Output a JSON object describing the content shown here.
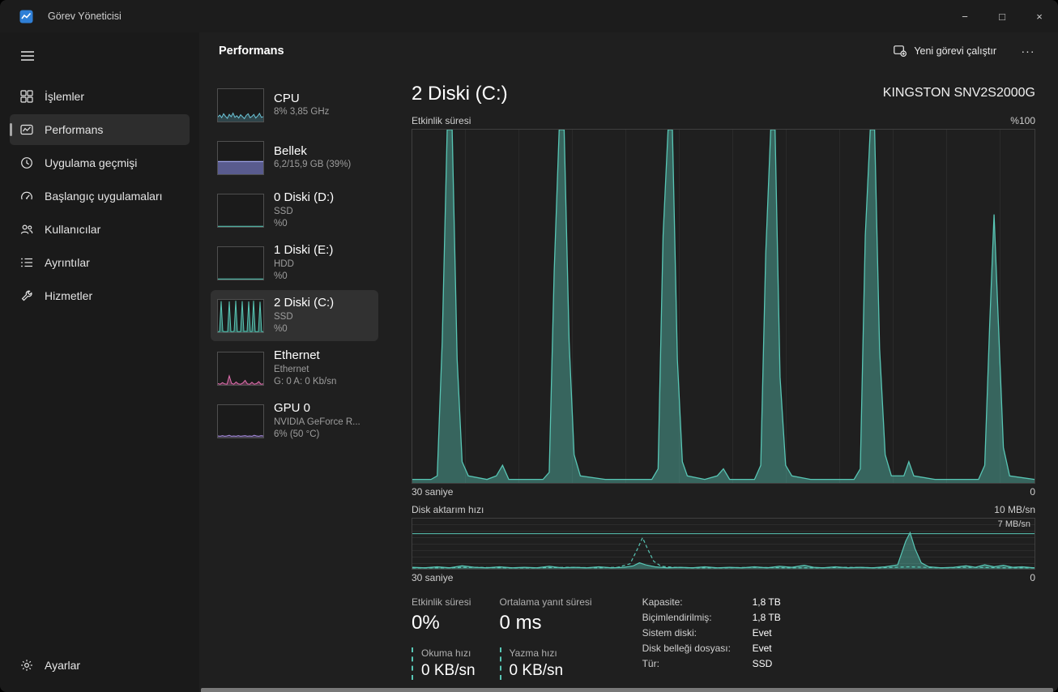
{
  "window": {
    "title": "Görev Yöneticisi"
  },
  "icons": {
    "minimize": "−",
    "maximize": "□",
    "close": "×",
    "more": "···"
  },
  "nav": {
    "items": [
      {
        "label": "İşlemler"
      },
      {
        "label": "Performans",
        "selected": true
      },
      {
        "label": "Uygulama geçmişi"
      },
      {
        "label": "Başlangıç uygulamaları"
      },
      {
        "label": "Kullanıcılar"
      },
      {
        "label": "Ayrıntılar"
      },
      {
        "label": "Hizmetler"
      }
    ],
    "settings_label": "Ayarlar"
  },
  "header": {
    "title": "Performans",
    "run_new_task": "Yeni görevi çalıştır"
  },
  "perf_list": [
    {
      "name": "CPU",
      "line1": "8% 3,85 GHz",
      "line2": ""
    },
    {
      "name": "Bellek",
      "line1": "6,2/15,9 GB (39%)",
      "line2": ""
    },
    {
      "name": "0 Diski (D:)",
      "line1": "SSD",
      "line2": "%0"
    },
    {
      "name": "1 Diski (E:)",
      "line1": "HDD",
      "line2": "%0"
    },
    {
      "name": "2 Diski (C:)",
      "line1": "SSD",
      "line2": "%0",
      "selected": true
    },
    {
      "name": "Ethernet",
      "line1": "Ethernet",
      "line2": "G: 0 A: 0 Kb/sn"
    },
    {
      "name": "GPU 0",
      "line1": "NVIDIA GeForce R...",
      "line2": "6% (50 °C)"
    }
  ],
  "detail": {
    "title": "2 Diski (C:)",
    "subtitle": "KINGSTON SNV2S2000G",
    "chart1": {
      "label": "Etkinlik süresi",
      "max_label": "%100",
      "x_left": "30 saniye",
      "x_right": "0"
    },
    "chart2": {
      "label": "Disk aktarım hızı",
      "max_label": "10 MB/sn",
      "peak_label": "7 MB/sn",
      "x_left": "30 saniye",
      "x_right": "0"
    },
    "stats": {
      "active_time": {
        "label": "Etkinlik süresi",
        "value": "0%"
      },
      "avg_response": {
        "label": "Ortalama yanıt süresi",
        "value": "0 ms"
      },
      "read_speed": {
        "label": "Okuma hızı",
        "value": "0 KB/sn"
      },
      "write_speed": {
        "label": "Yazma hızı",
        "value": "0 KB/sn"
      },
      "props": [
        {
          "label": "Kapasite:",
          "value": "1,8 TB"
        },
        {
          "label": "Biçimlendirilmiş:",
          "value": "1,8 TB"
        },
        {
          "label": "Sistem diski:",
          "value": "Evet"
        },
        {
          "label": "Disk belleği dosyası:",
          "value": "Evet"
        },
        {
          "label": "Tür:",
          "value": "SSD"
        }
      ]
    }
  },
  "colors": {
    "teal": "#58c6b5",
    "teal_fill": "rgba(88,198,181,0.42)",
    "cpu": "#6cc5d8",
    "cpu_fill": "rgba(108,197,216,0.25)",
    "purple": "#9da1e8",
    "purple_fill": "rgba(131,135,220,0.60)",
    "pink": "#e36fb0",
    "pink_fill": "rgba(227,111,176,0.30)",
    "gpu": "#a98ee0",
    "gpu_fill": "rgba(169,142,224,0.30)"
  },
  "chart_data": {
    "activity": {
      "type": "area",
      "title": "Etkinlik süresi",
      "ylim": [
        0,
        100
      ],
      "x_window": "30 saniye",
      "points": [
        [
          0,
          1
        ],
        [
          3,
          1
        ],
        [
          4,
          2
        ],
        [
          4.8,
          40
        ],
        [
          5.6,
          100
        ],
        [
          6.4,
          100
        ],
        [
          7.2,
          35
        ],
        [
          8,
          6
        ],
        [
          9,
          2
        ],
        [
          12,
          1
        ],
        [
          13.5,
          2
        ],
        [
          14.5,
          5
        ],
        [
          15.5,
          1
        ],
        [
          21,
          1
        ],
        [
          22,
          3
        ],
        [
          22.8,
          60
        ],
        [
          23.6,
          100
        ],
        [
          24.4,
          100
        ],
        [
          25.2,
          40
        ],
        [
          26,
          8
        ],
        [
          27,
          2
        ],
        [
          31,
          1
        ],
        [
          35,
          1
        ],
        [
          38.5,
          1
        ],
        [
          39.5,
          4
        ],
        [
          40.3,
          70
        ],
        [
          41.1,
          100
        ],
        [
          41.8,
          100
        ],
        [
          42.6,
          35
        ],
        [
          43.4,
          6
        ],
        [
          44.2,
          2
        ],
        [
          47,
          1
        ],
        [
          49,
          2
        ],
        [
          50,
          4
        ],
        [
          51,
          1
        ],
        [
          55,
          1
        ],
        [
          56,
          5
        ],
        [
          56.8,
          65
        ],
        [
          57.6,
          100
        ],
        [
          58.3,
          100
        ],
        [
          59.1,
          30
        ],
        [
          60,
          5
        ],
        [
          61,
          2
        ],
        [
          64,
          1
        ],
        [
          68,
          1
        ],
        [
          71,
          1
        ],
        [
          72,
          4
        ],
        [
          72.8,
          70
        ],
        [
          73.6,
          100
        ],
        [
          74.3,
          100
        ],
        [
          75.1,
          38
        ],
        [
          76,
          8
        ],
        [
          77,
          2
        ],
        [
          79,
          2
        ],
        [
          79.8,
          6
        ],
        [
          80.6,
          2
        ],
        [
          84,
          1
        ],
        [
          88,
          1
        ],
        [
          91,
          1
        ],
        [
          92,
          5
        ],
        [
          92.8,
          45
        ],
        [
          93.5,
          76
        ],
        [
          94.2,
          45
        ],
        [
          95,
          10
        ],
        [
          96,
          2
        ],
        [
          100,
          1
        ]
      ]
    },
    "transfer": {
      "type": "area",
      "title": "Disk aktarım hızı",
      "ylim_label": "10 MB/sn",
      "scale_line_label": "7 MB/sn",
      "scale_line_pct": 70,
      "read_points": [
        [
          0,
          3
        ],
        [
          2,
          2
        ],
        [
          4,
          4
        ],
        [
          6,
          2
        ],
        [
          8,
          6
        ],
        [
          10,
          3
        ],
        [
          12,
          2
        ],
        [
          14,
          4
        ],
        [
          16,
          2
        ],
        [
          18,
          3
        ],
        [
          20,
          2
        ],
        [
          22,
          5
        ],
        [
          24,
          2
        ],
        [
          26,
          3
        ],
        [
          28,
          2
        ],
        [
          30,
          4
        ],
        [
          32,
          2
        ],
        [
          34,
          3
        ],
        [
          35.5,
          6
        ],
        [
          36.5,
          12
        ],
        [
          37.5,
          8
        ],
        [
          39,
          4
        ],
        [
          41,
          2
        ],
        [
          43,
          3
        ],
        [
          45,
          2
        ],
        [
          47,
          4
        ],
        [
          49,
          2
        ],
        [
          51,
          3
        ],
        [
          53,
          2
        ],
        [
          55,
          4
        ],
        [
          57,
          2
        ],
        [
          59,
          5
        ],
        [
          61,
          3
        ],
        [
          63,
          7
        ],
        [
          64.5,
          3
        ],
        [
          66,
          2
        ],
        [
          68,
          4
        ],
        [
          70,
          2
        ],
        [
          72,
          3
        ],
        [
          74,
          2
        ],
        [
          76,
          4
        ],
        [
          78,
          8
        ],
        [
          79.3,
          55
        ],
        [
          80,
          72
        ],
        [
          80.8,
          40
        ],
        [
          81.8,
          12
        ],
        [
          83,
          4
        ],
        [
          85,
          2
        ],
        [
          87,
          3
        ],
        [
          89,
          6
        ],
        [
          90.5,
          3
        ],
        [
          92,
          8
        ],
        [
          93.5,
          4
        ],
        [
          95,
          7
        ],
        [
          96.5,
          3
        ],
        [
          98,
          4
        ],
        [
          100,
          2
        ]
      ],
      "write_points": [
        [
          0,
          2
        ],
        [
          5,
          2
        ],
        [
          10,
          3
        ],
        [
          15,
          2
        ],
        [
          20,
          2
        ],
        [
          25,
          3
        ],
        [
          30,
          2
        ],
        [
          33,
          3
        ],
        [
          35,
          10
        ],
        [
          36.2,
          40
        ],
        [
          37,
          62
        ],
        [
          37.8,
          40
        ],
        [
          38.8,
          15
        ],
        [
          40,
          5
        ],
        [
          42,
          3
        ],
        [
          45,
          2
        ],
        [
          50,
          2
        ],
        [
          55,
          3
        ],
        [
          60,
          2
        ],
        [
          65,
          2
        ],
        [
          70,
          3
        ],
        [
          75,
          2
        ],
        [
          80,
          4
        ],
        [
          85,
          2
        ],
        [
          90,
          3
        ],
        [
          95,
          2
        ],
        [
          100,
          2
        ]
      ]
    }
  },
  "sparks": {
    "cpu": [
      14,
      20,
      12,
      24,
      16,
      10,
      22,
      15,
      26,
      13,
      18,
      11,
      21,
      15,
      9,
      19,
      24,
      12,
      16,
      22,
      11,
      17,
      25,
      13,
      15
    ],
    "memory": [
      39,
      39,
      39,
      39,
      39,
      39,
      39,
      39,
      39,
      39
    ],
    "disk_idle": [
      2,
      2,
      2,
      2,
      2,
      2,
      2,
      2,
      2,
      2
    ],
    "disk_c": [
      2,
      2,
      96,
      3,
      2,
      2,
      2,
      95,
      2,
      2,
      3,
      97,
      2,
      2,
      2,
      96,
      2,
      3,
      2,
      95,
      2,
      2,
      97,
      2,
      2,
      2,
      94,
      2,
      2
    ],
    "ethernet": [
      4,
      2,
      7,
      3,
      2,
      28,
      5,
      2,
      9,
      3,
      2,
      6,
      14,
      3,
      2,
      8,
      2,
      4,
      10,
      2,
      3
    ],
    "gpu": [
      5,
      4,
      6,
      4,
      5,
      7,
      4,
      5,
      4,
      6,
      4,
      5,
      6,
      4,
      5,
      4,
      7,
      5,
      4,
      6,
      5
    ]
  }
}
